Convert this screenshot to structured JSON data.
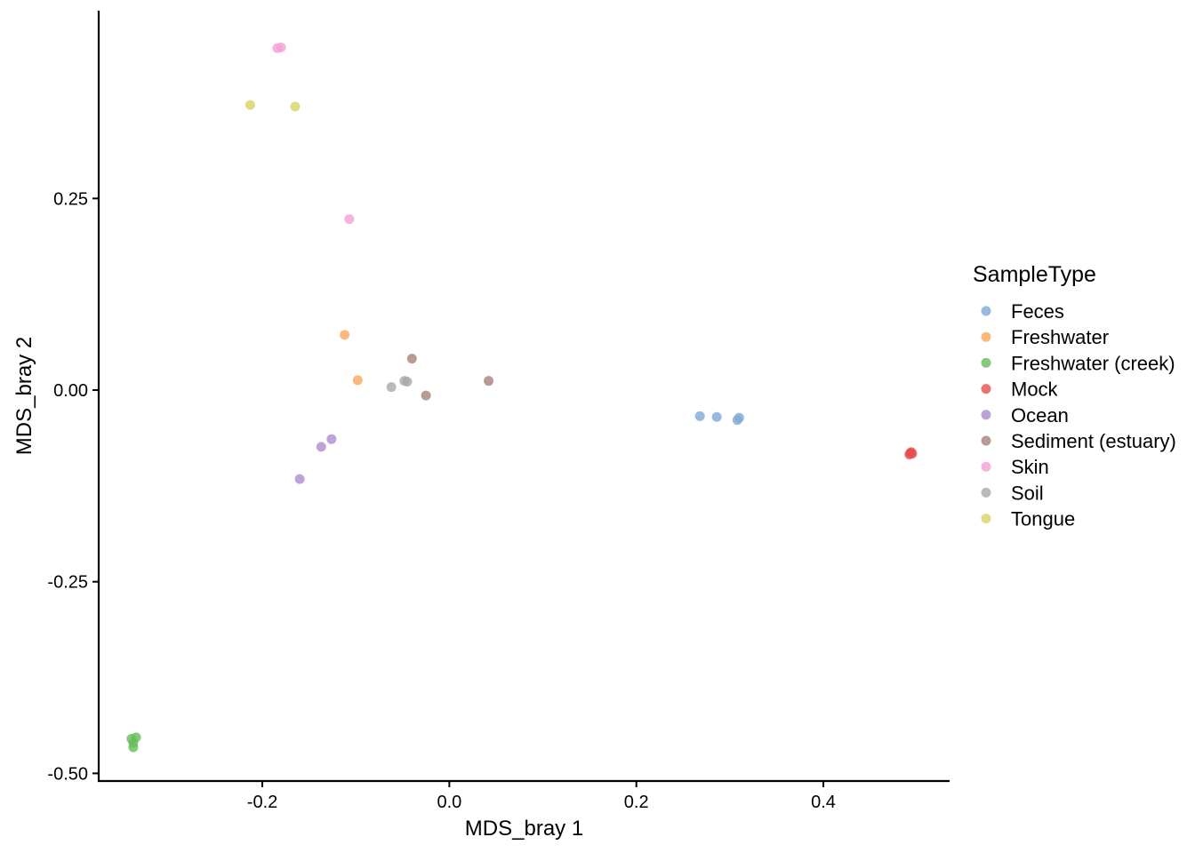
{
  "chart_data": {
    "type": "scatter",
    "title": "",
    "xlabel": "MDS_bray 1",
    "ylabel": "MDS_bray 2",
    "xlim": [
      -0.375,
      0.535
    ],
    "ylim": [
      -0.51,
      0.495
    ],
    "x_ticks": [
      -0.2,
      0.0,
      0.2,
      0.4
    ],
    "x_tick_labels": [
      "-0.2",
      "0.0",
      "0.2",
      "0.4"
    ],
    "y_ticks": [
      0.25,
      0.0,
      -0.25,
      -0.5
    ],
    "y_tick_labels": [
      "0.25",
      "0.00",
      "-0.25",
      "-0.50"
    ],
    "grid": false,
    "legend_position": "right",
    "legend_title": "SampleType",
    "series": [
      {
        "name": "Feces",
        "color": "#80A8D4",
        "points": [
          [
            0.268,
            -0.034
          ],
          [
            0.286,
            -0.035
          ],
          [
            0.31,
            -0.036
          ],
          [
            0.308,
            -0.039
          ]
        ]
      },
      {
        "name": "Freshwater",
        "color": "#F9A85A",
        "points": [
          [
            -0.112,
            0.072
          ],
          [
            -0.098,
            0.013
          ]
        ]
      },
      {
        "name": "Freshwater (creek)",
        "color": "#66BC5A",
        "points": [
          [
            -0.34,
            -0.455
          ],
          [
            -0.338,
            -0.46
          ],
          [
            -0.338,
            -0.466
          ],
          [
            -0.335,
            -0.453
          ]
        ]
      },
      {
        "name": "Mock",
        "color": "#E84E4E",
        "points": [
          [
            0.493,
            -0.082
          ],
          [
            0.495,
            -0.083
          ],
          [
            0.494,
            -0.081
          ],
          [
            0.492,
            -0.084
          ]
        ]
      },
      {
        "name": "Ocean",
        "color": "#AD8CCC",
        "points": [
          [
            -0.126,
            -0.064
          ],
          [
            -0.137,
            -0.074
          ],
          [
            -0.16,
            -0.116
          ]
        ]
      },
      {
        "name": "Sediment (estuary)",
        "color": "#A8827A",
        "points": [
          [
            -0.04,
            0.041
          ],
          [
            -0.025,
            -0.007
          ],
          [
            0.042,
            0.012
          ]
        ]
      },
      {
        "name": "Skin",
        "color": "#F3A1D5",
        "points": [
          [
            -0.184,
            0.446
          ],
          [
            -0.18,
            0.447
          ],
          [
            -0.107,
            0.223
          ]
        ]
      },
      {
        "name": "Soil",
        "color": "#A9A9A9",
        "points": [
          [
            -0.062,
            0.004
          ],
          [
            -0.048,
            0.012
          ],
          [
            -0.045,
            0.011
          ]
        ]
      },
      {
        "name": "Tongue",
        "color": "#D6D467",
        "points": [
          [
            -0.213,
            0.372
          ],
          [
            -0.165,
            0.37
          ]
        ]
      }
    ]
  }
}
